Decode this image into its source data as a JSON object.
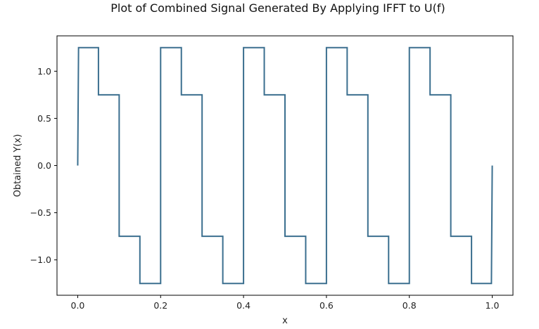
{
  "chart_data": {
    "type": "line",
    "title": "Plot of Combined Signal Generated By Applying IFFT to U(f)",
    "xlabel": "x",
    "ylabel": "Obtained Y(x)",
    "xlim": [
      -0.05,
      1.05
    ],
    "ylim": [
      -1.375,
      1.375
    ],
    "grid": false,
    "xticks": [
      0.0,
      0.2,
      0.4,
      0.6,
      0.8,
      1.0
    ],
    "xtick_labels": [
      "0.0",
      "0.2",
      "0.4",
      "0.6",
      "0.8",
      "1.0"
    ],
    "yticks": [
      -1.0,
      -0.5,
      0.0,
      0.5,
      1.0
    ],
    "ytick_labels": [
      "−1.0",
      "−0.5",
      "0.0",
      "0.5",
      "1.0"
    ],
    "series": [
      {
        "color": "#3b6f8f",
        "x": [
          0.0,
          0.002,
          0.05,
          0.05,
          0.1,
          0.1,
          0.15,
          0.15,
          0.2,
          0.2,
          0.25,
          0.25,
          0.3,
          0.3,
          0.35,
          0.35,
          0.4,
          0.4,
          0.45,
          0.45,
          0.5,
          0.5,
          0.55,
          0.55,
          0.6,
          0.6,
          0.65,
          0.65,
          0.7,
          0.7,
          0.75,
          0.75,
          0.8,
          0.8,
          0.85,
          0.85,
          0.9,
          0.9,
          0.95,
          0.95,
          0.998,
          1.0
        ],
        "y": [
          0.0,
          1.25,
          1.25,
          0.75,
          0.75,
          -0.75,
          -0.75,
          -1.25,
          -1.25,
          1.25,
          1.25,
          0.75,
          0.75,
          -0.75,
          -0.75,
          -1.25,
          -1.25,
          1.25,
          1.25,
          0.75,
          0.75,
          -0.75,
          -0.75,
          -1.25,
          -1.25,
          1.25,
          1.25,
          0.75,
          0.75,
          -0.75,
          -0.75,
          -1.25,
          -1.25,
          1.25,
          1.25,
          0.75,
          0.75,
          -0.75,
          -0.75,
          -1.25,
          -1.25,
          0.0
        ]
      }
    ]
  }
}
